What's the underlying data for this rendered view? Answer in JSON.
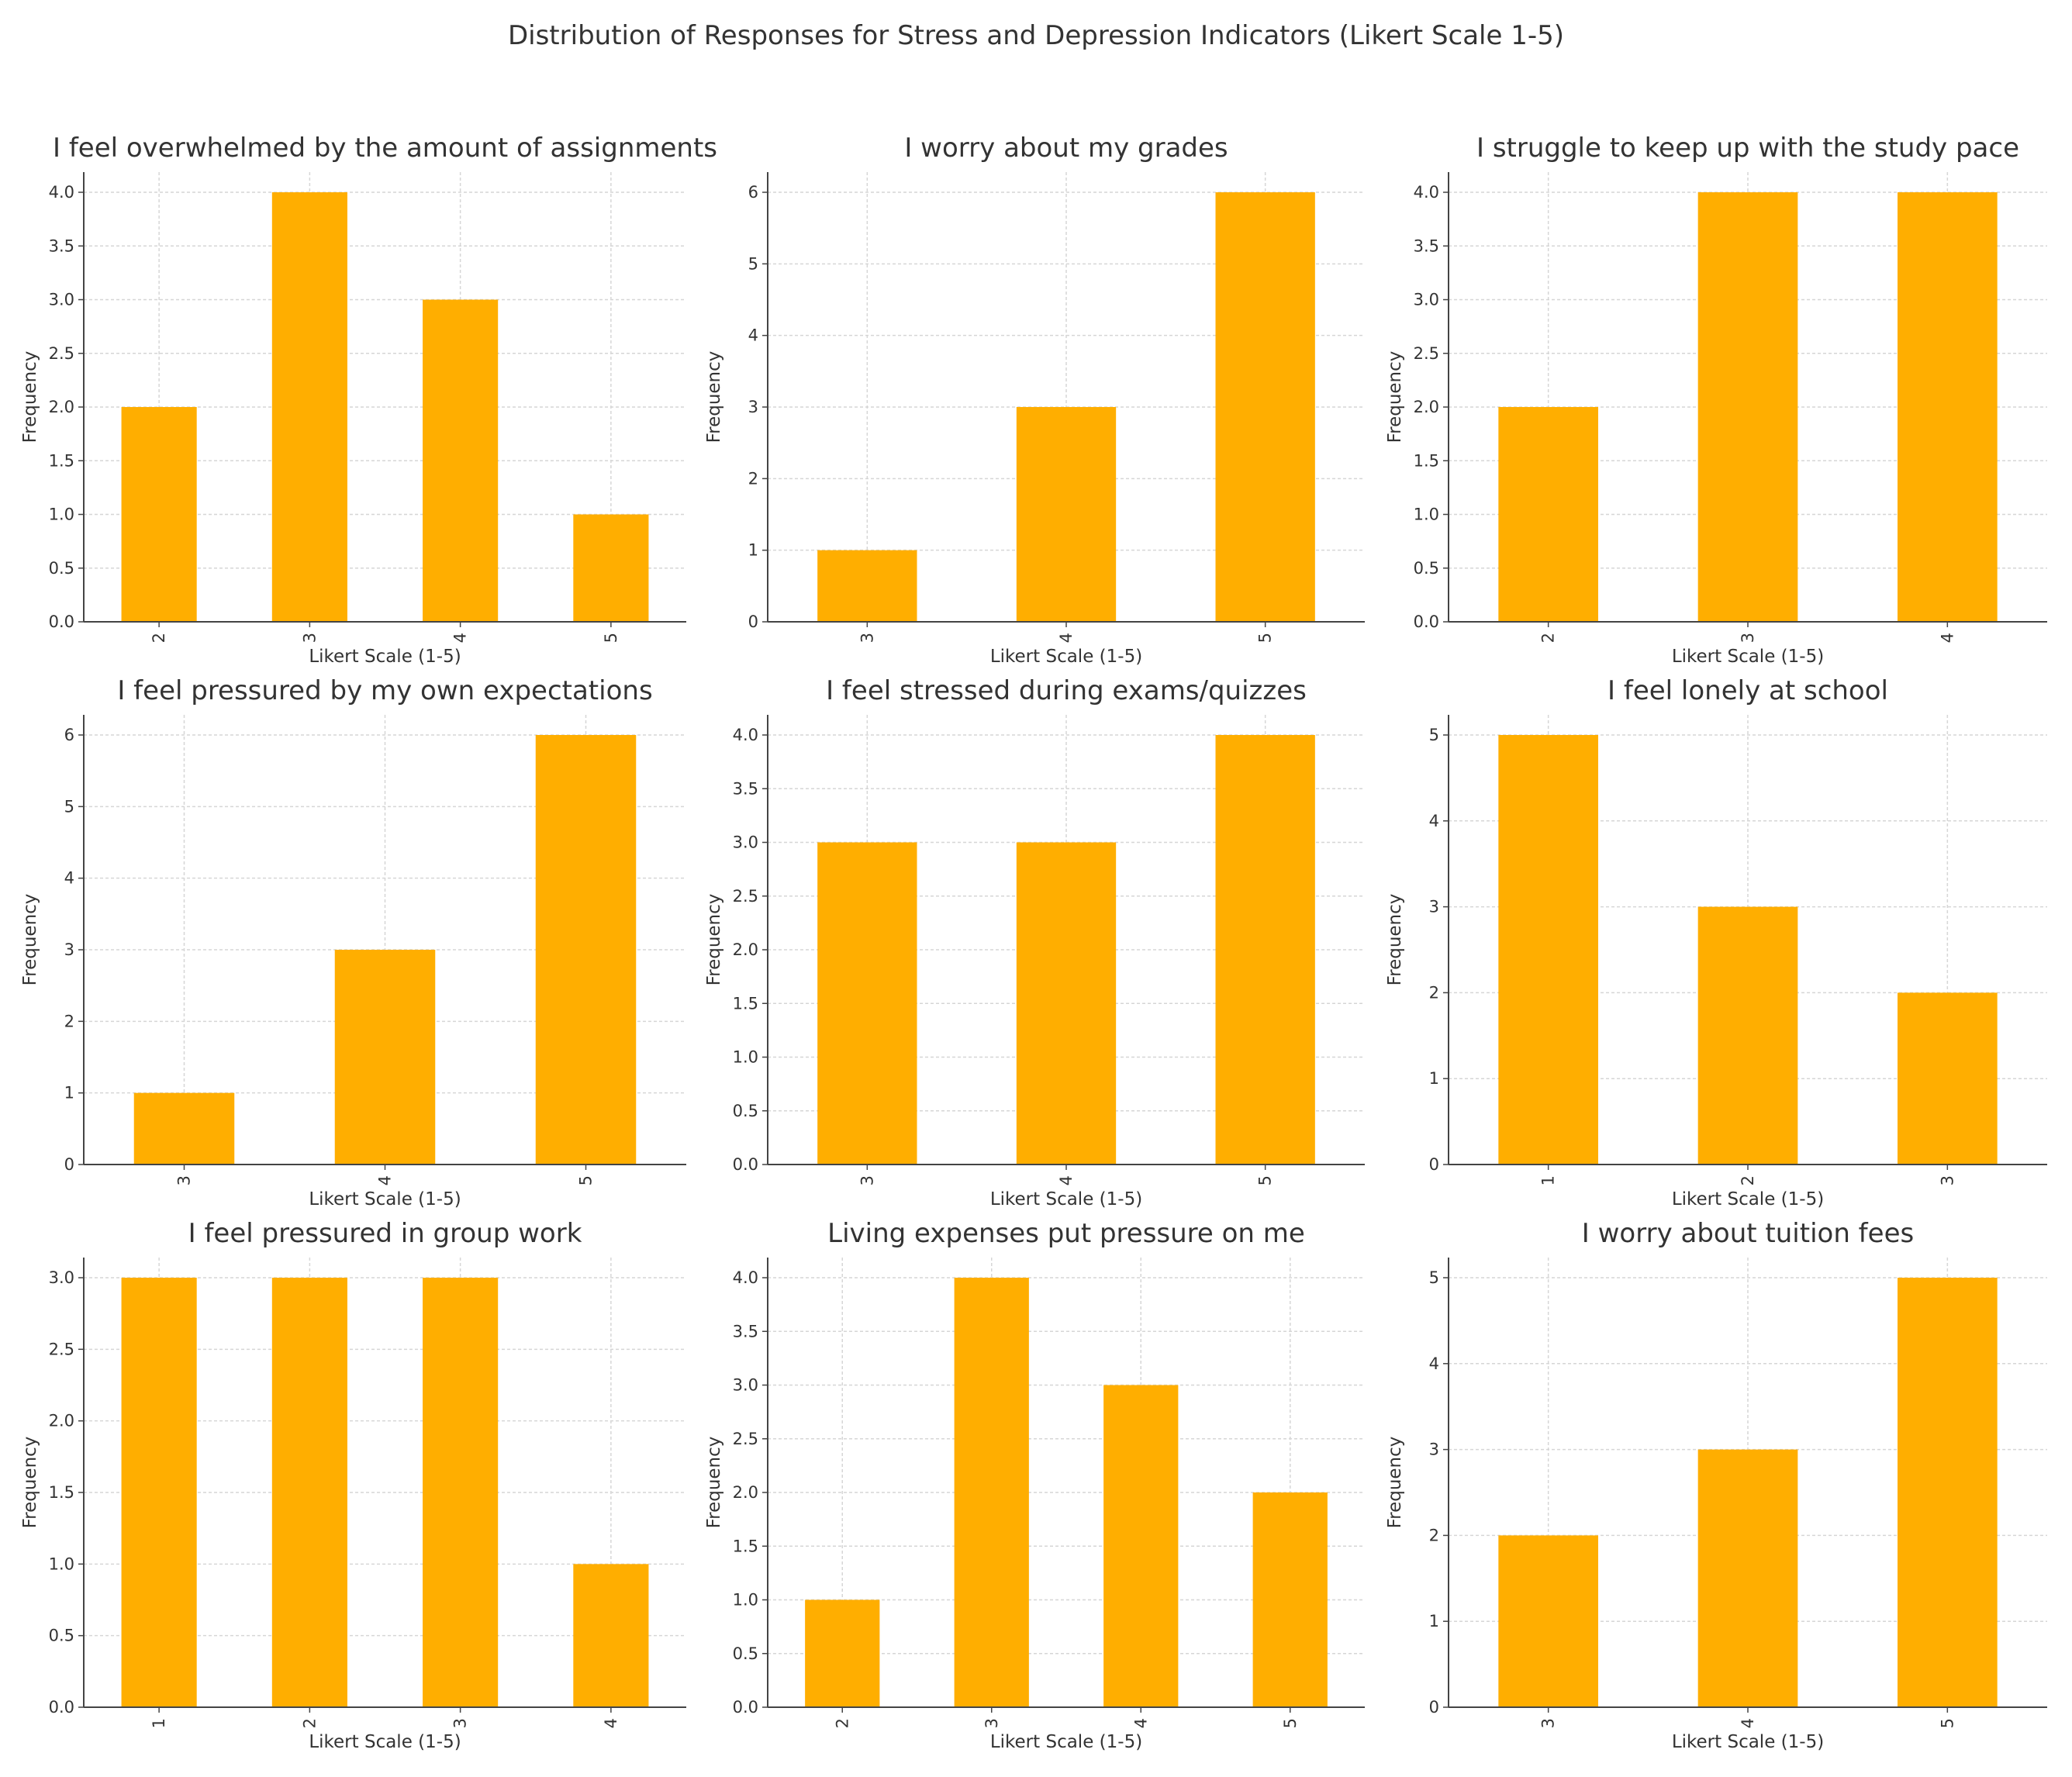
{
  "suptitle": "Distribution of Responses for Stress and Depression Indicators (Likert Scale 1-5)",
  "bar_color": "#FFAE00",
  "chart_data": [
    {
      "type": "bar",
      "title": "I feel overwhelmed by the amount of assignments",
      "categories": [
        "2",
        "3",
        "4",
        "5"
      ],
      "values": [
        2,
        4,
        3,
        1
      ],
      "xlabel": "Likert Scale (1-5)",
      "ylabel": "Frequency",
      "ylim": [
        0,
        4
      ],
      "yticks": [
        "0.0",
        "0.5",
        "1.0",
        "1.5",
        "2.0",
        "2.5",
        "3.0",
        "3.5",
        "4.0"
      ],
      "grid": true
    },
    {
      "type": "bar",
      "title": "I worry about my grades",
      "categories": [
        "3",
        "4",
        "5"
      ],
      "values": [
        1,
        3,
        6
      ],
      "xlabel": "Likert Scale (1-5)",
      "ylabel": "Frequency",
      "ylim": [
        0,
        6
      ],
      "yticks": [
        "0",
        "1",
        "2",
        "3",
        "4",
        "5",
        "6"
      ],
      "grid": true
    },
    {
      "type": "bar",
      "title": "I struggle to keep up with the study pace",
      "categories": [
        "2",
        "3",
        "4"
      ],
      "values": [
        2,
        4,
        4
      ],
      "xlabel": "Likert Scale (1-5)",
      "ylabel": "Frequency",
      "ylim": [
        0,
        4
      ],
      "yticks": [
        "0.0",
        "0.5",
        "1.0",
        "1.5",
        "2.0",
        "2.5",
        "3.0",
        "3.5",
        "4.0"
      ],
      "grid": true
    },
    {
      "type": "bar",
      "title": "I feel pressured by my own expectations",
      "categories": [
        "3",
        "4",
        "5"
      ],
      "values": [
        1,
        3,
        6
      ],
      "xlabel": "Likert Scale (1-5)",
      "ylabel": "Frequency",
      "ylim": [
        0,
        6
      ],
      "yticks": [
        "0",
        "1",
        "2",
        "3",
        "4",
        "5",
        "6"
      ],
      "grid": true
    },
    {
      "type": "bar",
      "title": "I feel stressed during exams/quizzes",
      "categories": [
        "3",
        "4",
        "5"
      ],
      "values": [
        3,
        3,
        4
      ],
      "xlabel": "Likert Scale (1-5)",
      "ylabel": "Frequency",
      "ylim": [
        0,
        4
      ],
      "yticks": [
        "0.0",
        "0.5",
        "1.0",
        "1.5",
        "2.0",
        "2.5",
        "3.0",
        "3.5",
        "4.0"
      ],
      "grid": true
    },
    {
      "type": "bar",
      "title": "I feel lonely at school",
      "categories": [
        "1",
        "2",
        "3"
      ],
      "values": [
        5,
        3,
        2
      ],
      "xlabel": "Likert Scale (1-5)",
      "ylabel": "Frequency",
      "ylim": [
        0,
        5
      ],
      "yticks": [
        "0",
        "1",
        "2",
        "3",
        "4",
        "5"
      ],
      "grid": true
    },
    {
      "type": "bar",
      "title": "I feel pressured in group work",
      "categories": [
        "1",
        "2",
        "3",
        "4"
      ],
      "values": [
        3,
        3,
        3,
        1
      ],
      "xlabel": "Likert Scale (1-5)",
      "ylabel": "Frequency",
      "ylim": [
        0,
        3
      ],
      "yticks": [
        "0.0",
        "0.5",
        "1.0",
        "1.5",
        "2.0",
        "2.5",
        "3.0"
      ],
      "grid": true
    },
    {
      "type": "bar",
      "title": "Living expenses put pressure on me",
      "categories": [
        "2",
        "3",
        "4",
        "5"
      ],
      "values": [
        1,
        4,
        3,
        2
      ],
      "xlabel": "Likert Scale (1-5)",
      "ylabel": "Frequency",
      "ylim": [
        0,
        4
      ],
      "yticks": [
        "0.0",
        "0.5",
        "1.0",
        "1.5",
        "2.0",
        "2.5",
        "3.0",
        "3.5",
        "4.0"
      ],
      "grid": true
    },
    {
      "type": "bar",
      "title": "I worry about tuition fees",
      "categories": [
        "3",
        "4",
        "5"
      ],
      "values": [
        2,
        3,
        5
      ],
      "xlabel": "Likert Scale (1-5)",
      "ylabel": "Frequency",
      "ylim": [
        0,
        5
      ],
      "yticks": [
        "0",
        "1",
        "2",
        "3",
        "4",
        "5"
      ],
      "grid": true
    }
  ]
}
